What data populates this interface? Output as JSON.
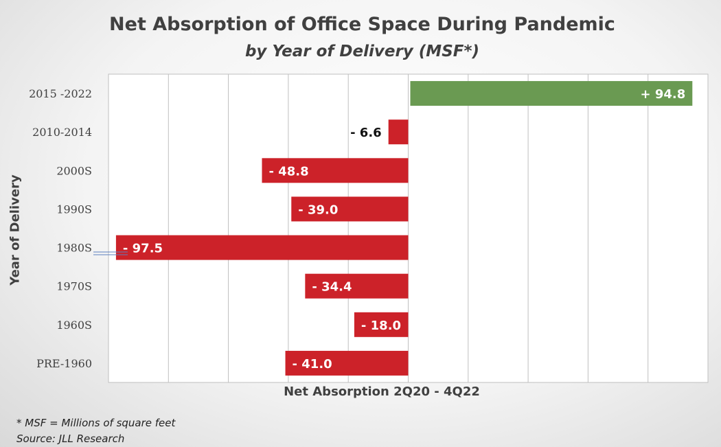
{
  "chart_data": {
    "type": "bar",
    "orientation": "horizontal",
    "title": "Net Absorption of Office Space During Pandemic",
    "subtitle": "by Year of Delivery (MSF*)",
    "xlabel": "Net Absorption 2Q20 - 4Q22",
    "ylabel": "Year of Delivery",
    "categories": [
      "2015 -2022",
      "2010-2014",
      "2000S",
      "1990S",
      "1980S",
      "1970S",
      "1960S",
      "PRE-1960"
    ],
    "values": [
      94.8,
      -6.6,
      -48.8,
      -39.0,
      -97.5,
      -34.4,
      -18.0,
      -41.0
    ],
    "data_labels": [
      "+ 94.8",
      "- 6.6",
      "- 48.8",
      "- 39.0",
      "- 97.5",
      "- 34.4",
      "- 18.0",
      "- 41.0"
    ],
    "xlim": [
      -100,
      100
    ],
    "grid": true,
    "colors": {
      "positive": "#6a9a52",
      "negative": "#cc2229",
      "grid": "#bfbfbf"
    }
  },
  "footnotes": {
    "msf": "* MSF = Millions of square feet",
    "source": "Source: JLL Research"
  }
}
